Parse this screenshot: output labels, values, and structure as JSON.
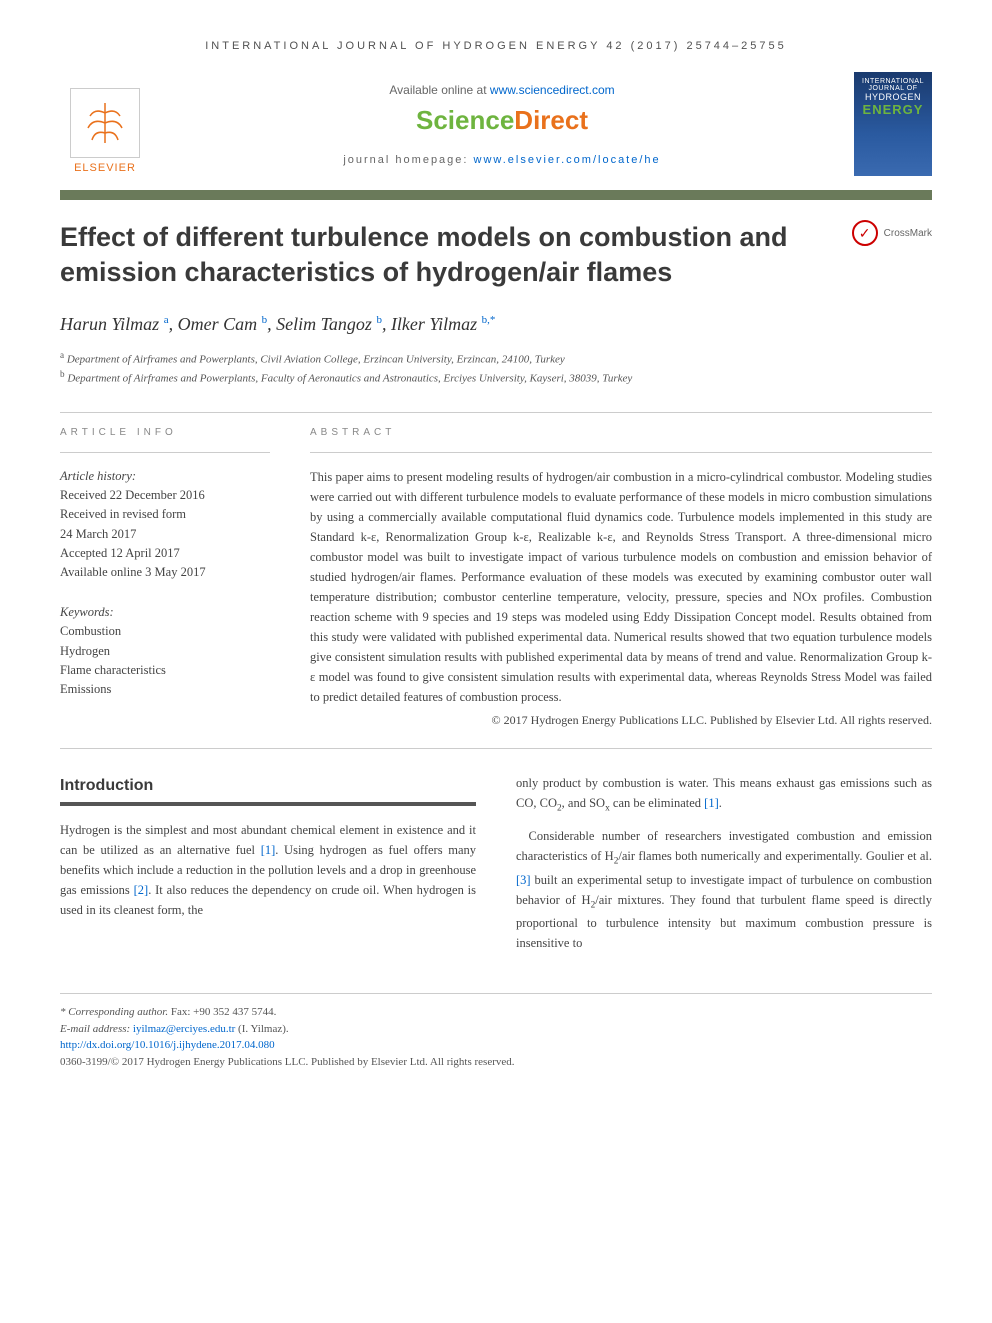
{
  "journal_header": "INTERNATIONAL JOURNAL OF HYDROGEN ENERGY 42 (2017) 25744–25755",
  "available_online_prefix": "Available online at ",
  "available_online_link": "www.sciencedirect.com",
  "sciencedirect": {
    "science": "Science",
    "direct": "Direct"
  },
  "homepage_prefix": "journal homepage: ",
  "homepage_link": "www.elsevier.com/locate/he",
  "elsevier_label": "ELSEVIER",
  "cover": {
    "line1": "INTERNATIONAL JOURNAL OF",
    "line2": "HYDROGEN",
    "line3": "ENERGY"
  },
  "crossmark_label": "CrossMark",
  "title": "Effect of different turbulence models on combustion and emission characteristics of hydrogen/air flames",
  "authors": [
    {
      "name": "Harun Yilmaz",
      "sup": "a"
    },
    {
      "name": "Omer Cam",
      "sup": "b"
    },
    {
      "name": "Selim Tangoz",
      "sup": "b"
    },
    {
      "name": "Ilker Yilmaz",
      "sup": "b,*"
    }
  ],
  "affiliations": [
    {
      "sup": "a",
      "text": "Department of Airframes and Powerplants, Civil Aviation College, Erzincan University, Erzincan, 24100, Turkey"
    },
    {
      "sup": "b",
      "text": "Department of Airframes and Powerplants, Faculty of Aeronautics and Astronautics, Erciyes University, Kayseri, 38039, Turkey"
    }
  ],
  "article_info_label": "ARTICLE INFO",
  "abstract_label": "ABSTRACT",
  "history_heading": "Article history:",
  "history_lines": [
    "Received 22 December 2016",
    "Received in revised form",
    "24 March 2017",
    "Accepted 12 April 2017",
    "Available online 3 May 2017"
  ],
  "keywords_heading": "Keywords:",
  "keywords": [
    "Combustion",
    "Hydrogen",
    "Flame characteristics",
    "Emissions"
  ],
  "abstract": "This paper aims to present modeling results of hydrogen/air combustion in a micro-cylindrical combustor. Modeling studies were carried out with different turbulence models to evaluate performance of these models in micro combustion simulations by using a commercially available computational fluid dynamics code. Turbulence models implemented in this study are Standard k-ε, Renormalization Group k-ε, Realizable k-ε, and Reynolds Stress Transport. A three-dimensional micro combustor model was built to investigate impact of various turbulence models on combustion and emission behavior of studied hydrogen/air flames. Performance evaluation of these models was executed by examining combustor outer wall temperature distribution; combustor centerline temperature, velocity, pressure, species and NOx profiles. Combustion reaction scheme with 9 species and 19 steps was modeled using Eddy Dissipation Concept model. Results obtained from this study were validated with published experimental data. Numerical results showed that two equation turbulence models give consistent simulation results with published experimental data by means of trend and value. Renormalization Group k-ε model was found to give consistent simulation results with experimental data, whereas Reynolds Stress Model was failed to predict detailed features of combustion process.",
  "abstract_copyright": "© 2017 Hydrogen Energy Publications LLC. Published by Elsevier Ltd. All rights reserved.",
  "intro_heading": "Introduction",
  "intro_p1_pre": "Hydrogen is the simplest and most abundant chemical element in existence and it can be utilized as an alternative fuel ",
  "intro_p1_ref1": "[1]",
  "intro_p1_mid": ". Using hydrogen as fuel offers many benefits which include a reduction in the pollution levels and a drop in greenhouse gas emissions ",
  "intro_p1_ref2": "[2]",
  "intro_p1_post": ". It also reduces the dependency on crude oil. When hydrogen is used in its cleanest form, the",
  "intro_p2_pre": "only product by combustion is water. This means exhaust gas emissions such as CO, CO",
  "intro_p2_sub1": "2",
  "intro_p2_mid": ", and SO",
  "intro_p2_sub2": "x",
  "intro_p2_post": " can be eliminated ",
  "intro_p2_ref": "[1]",
  "intro_p2_end": ".",
  "intro_p3_pre": "Considerable number of researchers investigated combustion and emission characteristics of H",
  "intro_p3_sub1": "2",
  "intro_p3_mid1": "/air flames both numerically and experimentally. Goulier et al. ",
  "intro_p3_ref": "[3]",
  "intro_p3_mid2": " built an experimental setup to investigate impact of turbulence on combustion behavior of H",
  "intro_p3_sub2": "2",
  "intro_p3_post": "/air mixtures. They found that turbulent flame speed is directly proportional to turbulence intensity but maximum combustion pressure is insensitive to",
  "footer": {
    "corr_label": "* Corresponding author.",
    "corr_fax": " Fax: +90 352 437 5744.",
    "email_label": "E-mail address: ",
    "email": "iyilmaz@erciyes.edu.tr",
    "email_name": " (I. Yilmaz).",
    "doi": "http://dx.doi.org/10.1016/j.ijhydene.2017.04.080",
    "issn_copyright": "0360-3199/© 2017 Hydrogen Energy Publications LLC. Published by Elsevier Ltd. All rights reserved."
  },
  "colors": {
    "link": "#0066cc",
    "elsevier_orange": "#e9711c",
    "sd_green": "#6eb43f",
    "divider_bar": "#6a7a5a",
    "text": "#444444",
    "heading": "#3a3a3a"
  }
}
